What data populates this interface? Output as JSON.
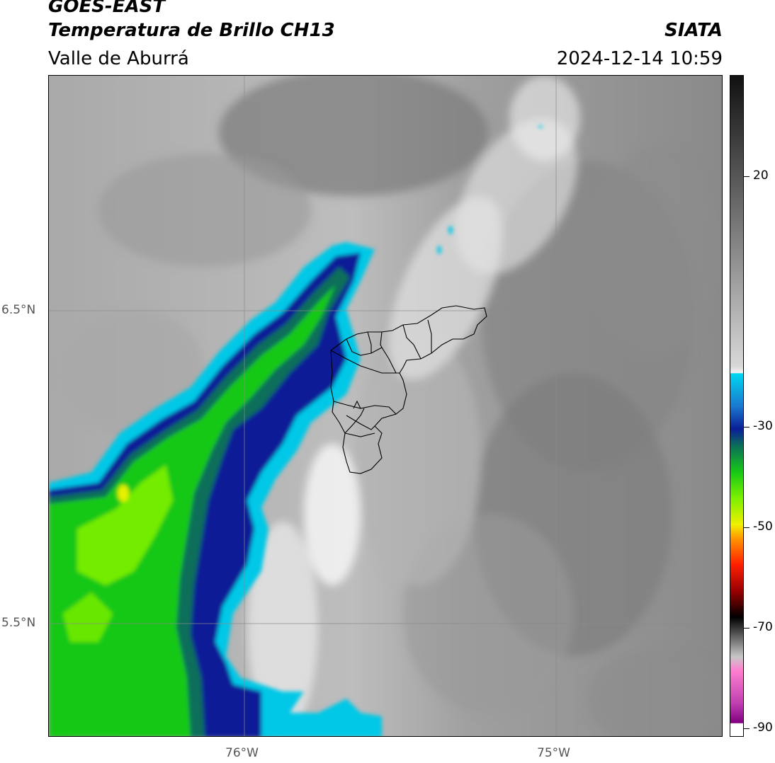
{
  "header": {
    "title_line1": "GOES-EAST",
    "title_line2": "Temperatura de Brillo CH13",
    "subtitle": "Valle de Aburrá",
    "agency": "SIATA",
    "datetime": "2024-12-14 10:59"
  },
  "map": {
    "latitude_labels": [
      "6.5°N",
      "5.5°N"
    ],
    "longitude_labels": [
      "76°W",
      "75°W"
    ],
    "colors": {
      "cloud_cyan": "#00c8e6",
      "cloud_blue": "#0a1e96",
      "cloud_teal": "#0b6e5a",
      "cloud_green": "#16c816",
      "cloud_lime": "#7df000",
      "cloud_yellow": "#e6f000",
      "gray_dark": "#6e6e6e",
      "gray_mid": "#9a9a9a",
      "gray_light": "#c8c8c8",
      "white": "#f2f2f2",
      "boundary": "#000000"
    }
  },
  "colorbar": {
    "ticks": [
      "20",
      "-30",
      "-50",
      "-70",
      "-90"
    ]
  }
}
